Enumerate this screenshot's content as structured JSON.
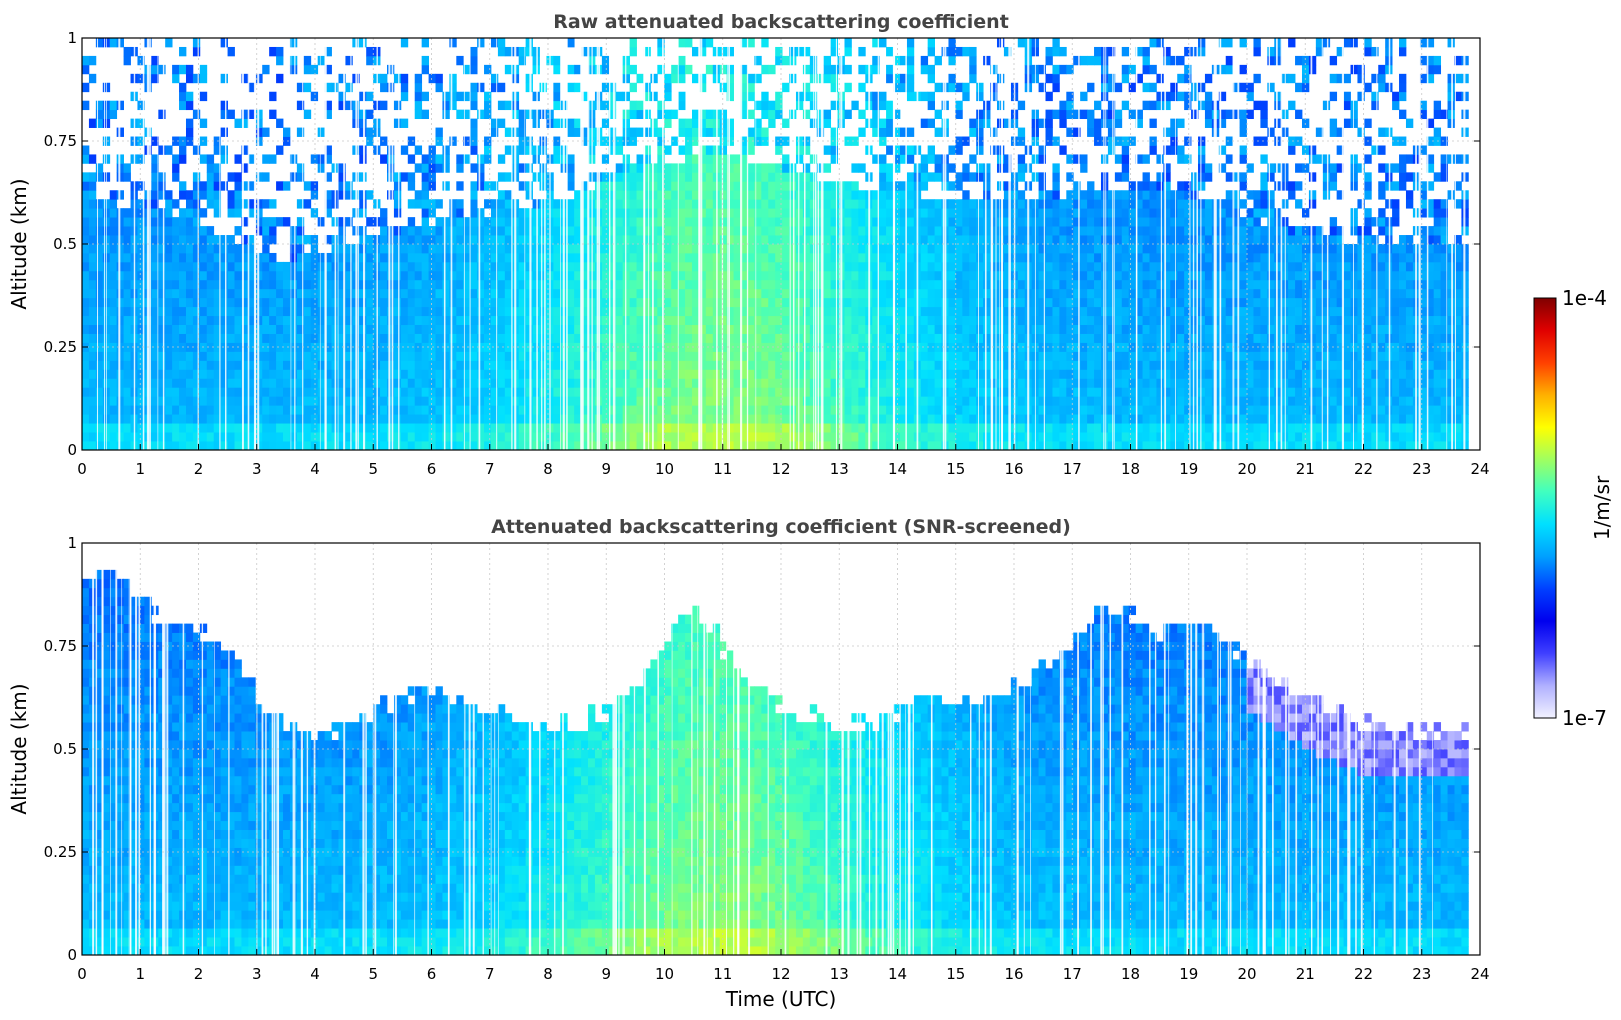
{
  "chart_data": [
    {
      "type": "heatmap",
      "title": "Raw attenuated backscattering coefficient",
      "xlabel": "",
      "ylabel": "Altitude (km)",
      "xlim": [
        0,
        24
      ],
      "ylim": [
        0,
        1
      ],
      "xticks": [
        0,
        1,
        2,
        3,
        4,
        5,
        6,
        7,
        8,
        9,
        10,
        11,
        12,
        13,
        14,
        15,
        16,
        17,
        18,
        19,
        20,
        21,
        22,
        23,
        24
      ],
      "yticks": [
        0,
        0.25,
        0.5,
        0.75,
        1
      ],
      "ytick_labels": [
        "0",
        "0.25",
        "0.5",
        "0.75",
        "1"
      ],
      "grid": true,
      "colorscale": "jet, white at minimum",
      "field": {
        "description": "log10 backscatter; strongest near surface, noisy/white above ~0.5 km",
        "signal_top_km": [
          [
            0,
            0.62
          ],
          [
            2,
            0.55
          ],
          [
            3.5,
            0.45
          ],
          [
            4.5,
            0.5
          ],
          [
            6,
            0.55
          ],
          [
            8,
            0.6
          ],
          [
            10,
            0.7
          ],
          [
            11,
            0.72
          ],
          [
            13,
            0.65
          ],
          [
            15,
            0.6
          ],
          [
            17,
            0.62
          ],
          [
            19,
            0.62
          ],
          [
            20,
            0.55
          ],
          [
            22,
            0.5
          ],
          [
            23.8,
            0.5
          ]
        ],
        "peak_time_utc": 11
      }
    },
    {
      "type": "heatmap",
      "title": "Attenuated backscattering coefficient (SNR-screened)",
      "xlabel": "Time (UTC)",
      "ylabel": "Altitude (km)",
      "xlim": [
        0,
        24
      ],
      "ylim": [
        0,
        1
      ],
      "xticks": [
        0,
        1,
        2,
        3,
        4,
        5,
        6,
        7,
        8,
        9,
        10,
        11,
        12,
        13,
        14,
        15,
        16,
        17,
        18,
        19,
        20,
        21,
        22,
        23,
        24
      ],
      "yticks": [
        0,
        0.25,
        0.5,
        0.75,
        1
      ],
      "ytick_labels": [
        "0",
        "0.25",
        "0.5",
        "0.75",
        "1"
      ],
      "grid": true,
      "colorscale": "jet, white at minimum",
      "field": {
        "description": "SNR-screened backscatter; valid data below a boundary that dips to ~0.5 km near 4 UTC and rises to ~0.85 km near 17.5 UTC",
        "boundary_km": [
          [
            0,
            0.9
          ],
          [
            0.5,
            0.95
          ],
          [
            1,
            0.86
          ],
          [
            1.5,
            0.8
          ],
          [
            2,
            0.78
          ],
          [
            2.5,
            0.74
          ],
          [
            3,
            0.63
          ],
          [
            3.5,
            0.57
          ],
          [
            4,
            0.52
          ],
          [
            4.5,
            0.55
          ],
          [
            5,
            0.6
          ],
          [
            5.5,
            0.62
          ],
          [
            6,
            0.65
          ],
          [
            6.5,
            0.63
          ],
          [
            7,
            0.6
          ],
          [
            7.5,
            0.58
          ],
          [
            8,
            0.55
          ],
          [
            8.5,
            0.56
          ],
          [
            9,
            0.6
          ],
          [
            9.5,
            0.66
          ],
          [
            10,
            0.75
          ],
          [
            10.5,
            0.85
          ],
          [
            11,
            0.75
          ],
          [
            11.5,
            0.65
          ],
          [
            12,
            0.6
          ],
          [
            12.5,
            0.58
          ],
          [
            13,
            0.55
          ],
          [
            13.5,
            0.56
          ],
          [
            14,
            0.6
          ],
          [
            14.5,
            0.62
          ],
          [
            15,
            0.62
          ],
          [
            15.5,
            0.63
          ],
          [
            16,
            0.65
          ],
          [
            16.5,
            0.7
          ],
          [
            17,
            0.75
          ],
          [
            17.5,
            0.85
          ],
          [
            18,
            0.82
          ],
          [
            18.5,
            0.78
          ],
          [
            19,
            0.82
          ],
          [
            19.5,
            0.78
          ],
          [
            20,
            0.72
          ],
          [
            21,
            0.62
          ],
          [
            22,
            0.56
          ],
          [
            23,
            0.55
          ],
          [
            23.8,
            0.55
          ]
        ],
        "peak_time_utc": 11
      }
    }
  ],
  "colorbar": {
    "label": "1/m/sr",
    "max_label": "1e-4",
    "min_label": "1e-7",
    "colors": [
      "#f2f2ff",
      "#b0b0ff",
      "#4040ff",
      "#0000ee",
      "#0040ff",
      "#00a0ff",
      "#00e0ff",
      "#40ffc0",
      "#a0ff60",
      "#ffff00",
      "#ffb000",
      "#ff4000",
      "#e00000",
      "#800000"
    ]
  }
}
